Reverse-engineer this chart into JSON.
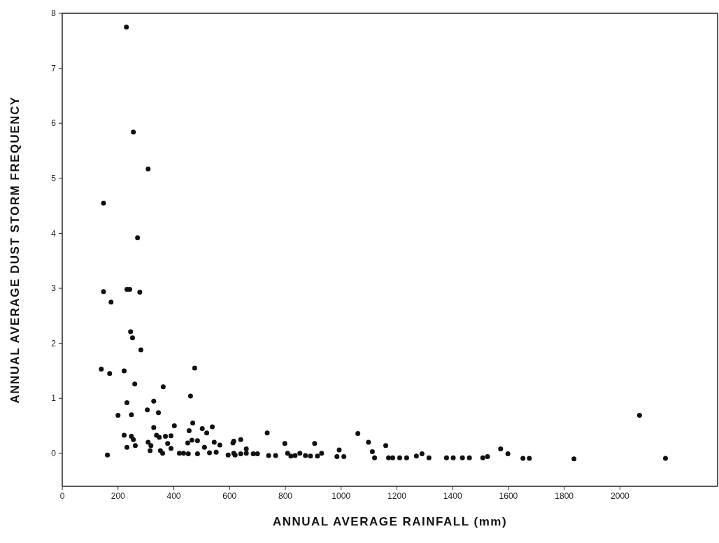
{
  "chart_data": {
    "type": "scatter",
    "xlabel": "ANNUAL AVERAGE RAINFALL (mm)",
    "ylabel": "ANNUAL AVERAGE DUST STORM FREQUENCY",
    "xlim": [
      0,
      2350
    ],
    "xticks": [
      0,
      200,
      400,
      600,
      800,
      1000,
      1200,
      1400,
      1600,
      1800,
      2000
    ],
    "ylim": [
      -0.6,
      8
    ],
    "yticks": [
      0,
      1,
      2,
      3,
      4,
      5,
      6,
      7,
      8
    ],
    "grid": false,
    "legend": false,
    "marker": "circle",
    "series": [
      {
        "color": "#111111",
        "x": [
          230,
          255,
          308,
          148,
          270,
          148,
          232,
          242,
          278,
          175,
          245,
          252,
          282,
          140,
          170,
          222,
          475,
          260,
          362,
          460,
          232,
          328,
          305,
          345,
          200,
          248,
          328,
          402,
          468,
          502,
          518,
          538,
          455,
          222,
          248,
          255,
          338,
          348,
          370,
          390,
          232,
          262,
          308,
          318,
          315,
          352,
          360,
          378,
          390,
          450,
          465,
          485,
          420,
          435,
          452,
          485,
          510,
          528,
          552,
          545,
          565,
          162,
          595,
          615,
          615,
          612,
          640,
          660,
          620,
          640,
          660,
          685,
          700,
          735,
          740,
          765,
          798,
          808,
          820,
          835,
          852,
          872,
          890,
          905,
          915,
          930,
          993,
          985,
          1010,
          1060,
          1098,
          1112,
          1120,
          1160,
          1170,
          1185,
          1210,
          1235,
          1270,
          1290,
          1315,
          1378,
          1402,
          1435,
          1460,
          1508,
          1525,
          1572,
          1598,
          1652,
          1675,
          1835,
          2070,
          2163
        ],
        "values": [
          7.75,
          5.84,
          5.17,
          4.55,
          3.92,
          2.94,
          2.98,
          2.98,
          2.93,
          2.75,
          2.21,
          2.1,
          1.88,
          1.53,
          1.45,
          1.5,
          1.55,
          1.26,
          1.21,
          1.04,
          0.92,
          0.95,
          0.79,
          0.74,
          0.69,
          0.7,
          0.47,
          0.5,
          0.55,
          0.45,
          0.37,
          0.48,
          0.41,
          0.33,
          0.31,
          0.25,
          0.33,
          0.29,
          0.31,
          0.32,
          0.11,
          0.14,
          0.2,
          0.14,
          0.05,
          0.05,
          0,
          0.18,
          0.09,
          0.19,
          0.24,
          0.23,
          0,
          0,
          -0.01,
          -0.01,
          0.11,
          0.01,
          0.02,
          0.2,
          0.15,
          -0.03,
          -0.03,
          0.22,
          0,
          0.19,
          0.25,
          0.08,
          -0.03,
          -0.01,
          0,
          -0.01,
          -0.01,
          0.37,
          -0.04,
          -0.04,
          0.18,
          0,
          -0.05,
          -0.04,
          0,
          -0.04,
          -0.05,
          0.18,
          -0.05,
          0,
          0.06,
          -0.06,
          -0.06,
          0.36,
          0.2,
          0.03,
          -0.08,
          0.14,
          -0.08,
          -0.08,
          -0.08,
          -0.08,
          -0.05,
          -0.01,
          -0.08,
          -0.08,
          -0.08,
          -0.08,
          -0.08,
          -0.08,
          -0.06,
          0.08,
          -0.01,
          -0.09,
          -0.09,
          -0.1,
          0.69,
          -0.09
        ]
      }
    ]
  }
}
